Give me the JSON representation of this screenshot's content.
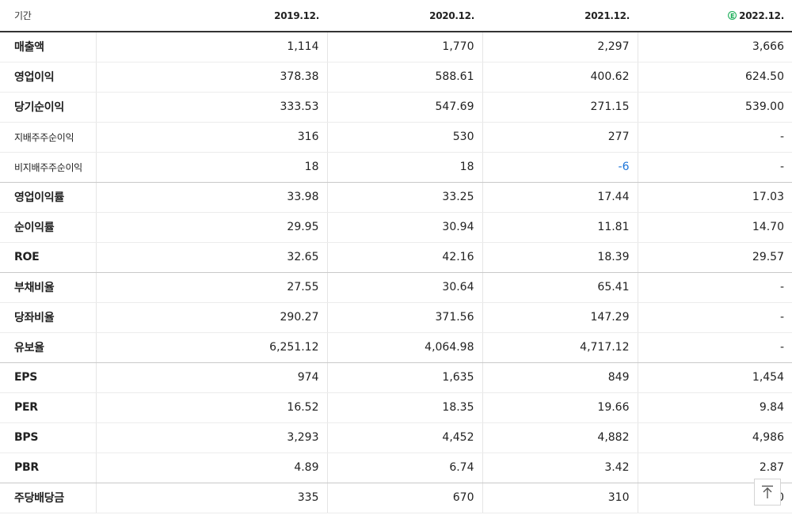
{
  "table": {
    "header_label": "기간",
    "periods": [
      {
        "label": "2019.12.",
        "estimate": false
      },
      {
        "label": "2020.12.",
        "estimate": false
      },
      {
        "label": "2021.12.",
        "estimate": false
      },
      {
        "label": "2022.12.",
        "estimate": true,
        "estimate_mark": "E"
      }
    ],
    "rows": [
      {
        "label": "매출액",
        "values": [
          "1,114",
          "1,770",
          "2,297",
          "3,666"
        ]
      },
      {
        "label": "영업이익",
        "values": [
          "378.38",
          "588.61",
          "400.62",
          "624.50"
        ]
      },
      {
        "label": "당기순이익",
        "values": [
          "333.53",
          "547.69",
          "271.15",
          "539.00"
        ]
      },
      {
        "label": "지배주주순이익",
        "values": [
          "316",
          "530",
          "277",
          "-"
        ]
      },
      {
        "label": "비지배주주순이익",
        "values": [
          "18",
          "18",
          "-6",
          "-"
        ]
      },
      {
        "label": "영업이익률",
        "values": [
          "33.98",
          "33.25",
          "17.44",
          "17.03"
        ]
      },
      {
        "label": "순이익률",
        "values": [
          "29.95",
          "30.94",
          "11.81",
          "14.70"
        ]
      },
      {
        "label": "ROE",
        "values": [
          "32.65",
          "42.16",
          "18.39",
          "29.57"
        ]
      },
      {
        "label": "부채비율",
        "values": [
          "27.55",
          "30.64",
          "65.41",
          "-"
        ]
      },
      {
        "label": "당좌비율",
        "values": [
          "290.27",
          "371.56",
          "147.29",
          "-"
        ]
      },
      {
        "label": "유보율",
        "values": [
          "6,251.12",
          "4,064.98",
          "4,717.12",
          "-"
        ]
      },
      {
        "label": "EPS",
        "values": [
          "974",
          "1,635",
          "849",
          "1,454"
        ]
      },
      {
        "label": "PER",
        "values": [
          "16.52",
          "18.35",
          "19.66",
          "9.84"
        ]
      },
      {
        "label": "BPS",
        "values": [
          "3,293",
          "4,452",
          "4,882",
          "4,986"
        ]
      },
      {
        "label": "PBR",
        "values": [
          "4.89",
          "6.74",
          "3.42",
          "2.87"
        ]
      },
      {
        "label": "주당배당금",
        "values": [
          "335",
          "670",
          "310",
          "0"
        ]
      }
    ]
  },
  "scroll_top_button": {
    "icon": "arrow-up-to-line-icon"
  },
  "colors": {
    "negative": "#1a73d9",
    "estimate_badge": "#1fae5b"
  }
}
